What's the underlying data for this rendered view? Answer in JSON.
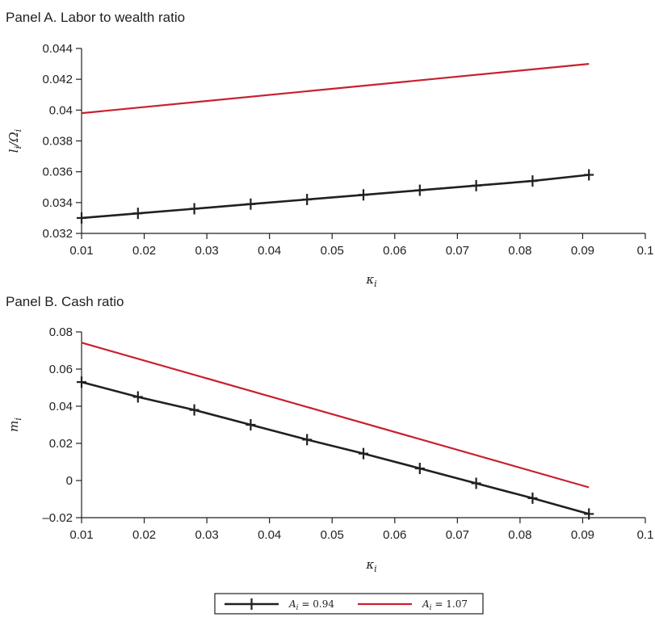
{
  "chart_data": [
    {
      "type": "line",
      "title": "Panel A. Labor to wealth ratio",
      "xlabel": "κi",
      "ylabel": "li/Ωi",
      "xlim": [
        0.01,
        0.1
      ],
      "ylim": [
        0.032,
        0.044
      ],
      "x_ticks": [
        0.01,
        0.02,
        0.03,
        0.04,
        0.05,
        0.06,
        0.07,
        0.08,
        0.09,
        0.1
      ],
      "x_tick_labels": [
        "0.01",
        "0.02",
        "0.03",
        "0.04",
        "0.05",
        "0.06",
        "0.07",
        "0.08",
        "0.09",
        "0.1"
      ],
      "y_ticks": [
        0.032,
        0.034,
        0.036,
        0.038,
        0.04,
        0.042,
        0.044
      ],
      "y_tick_labels": [
        "0.032",
        "0.034",
        "0.036",
        "0.038",
        "0.04",
        "0.042",
        "0.044"
      ],
      "grid": false,
      "series": [
        {
          "name": "Ai = 0.94",
          "color": "#231f20",
          "marker": "plus",
          "x": [
            0.01,
            0.019,
            0.028,
            0.037,
            0.046,
            0.055,
            0.064,
            0.073,
            0.082,
            0.091
          ],
          "y": [
            0.033,
            0.0333,
            0.0336,
            0.0339,
            0.0342,
            0.0345,
            0.0348,
            0.0351,
            0.0354,
            0.0358
          ]
        },
        {
          "name": "Ai = 1.07",
          "color": "#c8202f",
          "marker": "none",
          "x": [
            0.01,
            0.091
          ],
          "y": [
            0.0398,
            0.043
          ]
        }
      ]
    },
    {
      "type": "line",
      "title": "Panel B. Cash ratio",
      "xlabel": "κi",
      "ylabel": "mi",
      "xlim": [
        0.01,
        0.1
      ],
      "ylim": [
        -0.02,
        0.08
      ],
      "x_ticks": [
        0.01,
        0.02,
        0.03,
        0.04,
        0.05,
        0.06,
        0.07,
        0.08,
        0.09,
        0.1
      ],
      "x_tick_labels": [
        "0.01",
        "0.02",
        "0.03",
        "0.04",
        "0.05",
        "0.06",
        "0.07",
        "0.08",
        "0.09",
        "0.1"
      ],
      "y_ticks": [
        -0.02,
        0,
        0.02,
        0.04,
        0.06,
        0.08
      ],
      "y_tick_labels": [
        "–0.02",
        "0",
        "0.02",
        "0.04",
        "0.06",
        "0.08"
      ],
      "grid": false,
      "series": [
        {
          "name": "Ai = 0.94",
          "color": "#231f20",
          "marker": "plus",
          "x": [
            0.01,
            0.019,
            0.028,
            0.037,
            0.046,
            0.055,
            0.064,
            0.073,
            0.082,
            0.091
          ],
          "y": [
            0.053,
            0.045,
            0.038,
            0.03,
            0.022,
            0.0145,
            0.0065,
            -0.0015,
            -0.0095,
            -0.018
          ]
        },
        {
          "name": "Ai = 1.07",
          "color": "#c8202f",
          "marker": "none",
          "x": [
            0.01,
            0.091
          ],
          "y": [
            0.0742,
            -0.0037
          ]
        }
      ]
    }
  ],
  "legend": {
    "position": "bottom-center",
    "entries": [
      {
        "label_var": "A",
        "label_sub": "i",
        "label_eq": " = 0.94",
        "color": "#231f20",
        "marker": "plus"
      },
      {
        "label_var": "A",
        "label_sub": "i",
        "label_eq": " = 1.07",
        "color": "#c8202f",
        "marker": "none"
      }
    ]
  }
}
